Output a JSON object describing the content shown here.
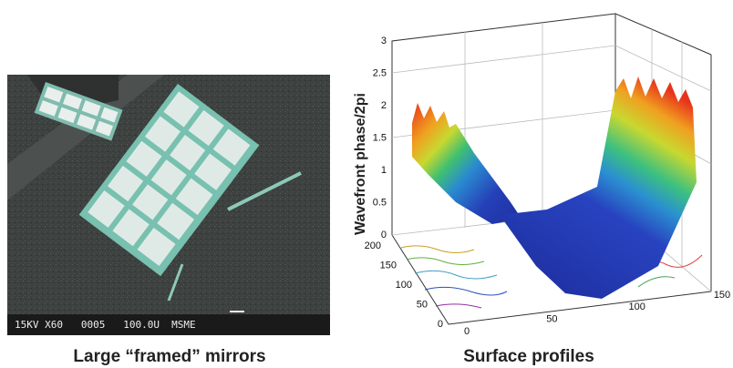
{
  "left_panel": {
    "caption": "Large “framed” mirrors",
    "sem_label": "15KV X60   0005   100.0U  MSME"
  },
  "right_panel": {
    "caption": "Surface profiles",
    "z_axis_label": "Wavefront phase/2pi",
    "zticks": [
      0,
      0.5,
      1,
      1.5,
      2,
      2.5,
      3
    ],
    "yticks": [
      0,
      50,
      100,
      150,
      200
    ],
    "xticks": [
      0,
      50,
      100,
      150
    ]
  }
}
